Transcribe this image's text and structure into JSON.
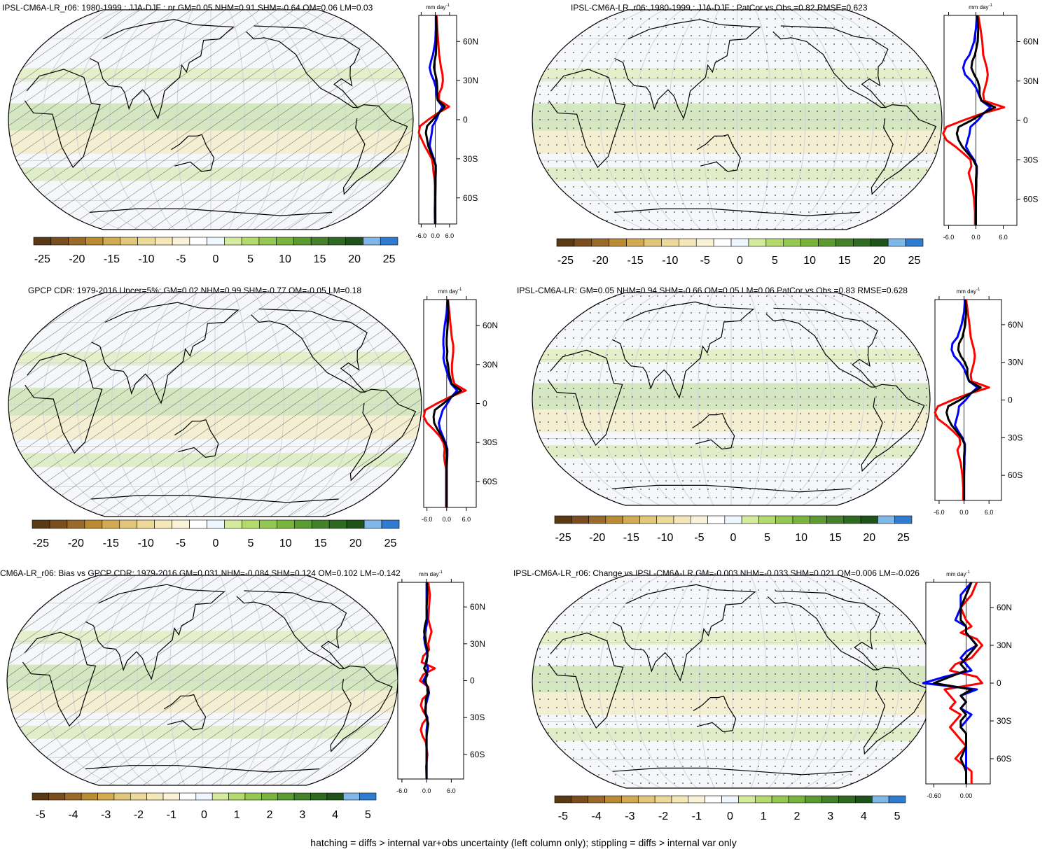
{
  "figure": {
    "footnote": "hatching = diffs > internal var+obs uncertainty (left column only); stippling = diffs > internal var only"
  },
  "colors": {
    "model_line": "#ff0000",
    "obs_line": "#0000ff",
    "ensemble_line": "#000000",
    "colorbar": [
      "#5a3a14",
      "#7a4e1e",
      "#9a6a2a",
      "#b98c34",
      "#d1aa52",
      "#e2c67a",
      "#ecd99a",
      "#f4e8b8",
      "#f9f2d6",
      "#ffffff",
      "#eef6ff",
      "#d4ea9c",
      "#b4da6e",
      "#94c852",
      "#78b43e",
      "#5c9a32",
      "#44812a",
      "#2f6a22",
      "#1f531a",
      "#7fb7e8",
      "#2e7bd0"
    ]
  },
  "chart_data": [
    {
      "type": "heatmap",
      "title": "IPSL-CM6A-LR_r06: 1980-1999 : JJA-DJF : pr GM=0.05 NHM=0.91 SHM=-0.64 OM=0.06 LM=0.03",
      "overlay": "hatching",
      "colorbar_ticks": [
        "-25",
        "-20",
        "-15",
        "-10",
        "-5",
        "0",
        "5",
        "10",
        "15",
        "20",
        "25"
      ],
      "zonal_mean": {
        "unit": "mm day",
        "unit_exp": "-1",
        "xticks": [
          "-6.0",
          "0.0",
          "6.0"
        ],
        "xlim": [
          -7,
          9
        ],
        "lat_ticks": [
          "60N",
          "30N",
          "0",
          "30S",
          "60S"
        ],
        "lat": [
          80,
          70,
          60,
          50,
          45,
          40,
          35,
          30,
          25,
          20,
          15,
          10,
          5,
          0,
          -5,
          -10,
          -15,
          -20,
          -25,
          -30,
          -35,
          -40,
          -45,
          -50,
          -60,
          -70,
          -80
        ],
        "series": [
          {
            "color": "red",
            "values": [
              0.5,
              0.8,
              1.2,
              1.6,
              2.0,
              2.4,
              3.0,
              3.2,
              2.8,
              1.6,
              1.5,
              5.8,
              1.0,
              -3.0,
              -6.5,
              -7.0,
              -5.8,
              -4.5,
              -3.0,
              -1.5,
              -1.0,
              -0.8,
              -0.4,
              -0.2,
              -0.2,
              -0.3,
              -0.2
            ]
          },
          {
            "color": "blue",
            "values": [
              0.2,
              0.2,
              0.0,
              -1.0,
              -1.8,
              -2.4,
              -1.8,
              -0.6,
              0.2,
              0.5,
              1.0,
              3.0,
              1.5,
              0.4,
              -1.2,
              -1.5,
              -2.0,
              -2.4,
              -1.6,
              -0.6,
              0.2,
              0.2,
              0.1,
              0.1,
              0.0,
              0.0,
              0.0
            ]
          },
          {
            "color": "black",
            "values": [
              0.3,
              0.5,
              0.4,
              0.2,
              -0.3,
              -0.6,
              0.0,
              0.6,
              0.8,
              0.8,
              1.0,
              4.0,
              1.4,
              -1.0,
              -3.5,
              -4.0,
              -3.5,
              -3.0,
              -2.0,
              -0.8,
              0.1,
              0.1,
              0.0,
              0.0,
              0.0,
              0.0,
              0.0
            ]
          }
        ]
      }
    },
    {
      "type": "heatmap",
      "title": "IPSL-CM6A-LR_r06: 1980-1999 : JJA-DJF : PatCor vs Obs =0.82 RMSE=0.623",
      "overlay": "stippling",
      "colorbar_ticks": [
        "-25",
        "-20",
        "-15",
        "-10",
        "-5",
        "0",
        "5",
        "10",
        "15",
        "20",
        "25"
      ],
      "zonal_mean": {
        "unit": "mm day",
        "unit_exp": "-1",
        "xticks": [
          "-6.0",
          "0.0",
          "6.0"
        ],
        "xlim": [
          -7,
          9
        ],
        "lat_ticks": [
          "60N",
          "30N",
          "0",
          "30S",
          "60S"
        ],
        "lat": [
          80,
          70,
          60,
          50,
          45,
          40,
          35,
          30,
          25,
          20,
          15,
          10,
          5,
          0,
          -5,
          -10,
          -15,
          -20,
          -25,
          -30,
          -35,
          -40,
          -45,
          -50,
          -60,
          -70,
          -80
        ],
        "series": [
          {
            "color": "red",
            "values": [
              0.5,
              1.0,
              1.4,
              1.6,
              2.0,
              2.4,
              2.6,
              2.4,
              2.0,
              1.6,
              1.8,
              6.2,
              1.2,
              -2.8,
              -6.5,
              -7.2,
              -6.5,
              -4.5,
              -2.8,
              -1.2,
              -1.0,
              -1.6,
              -1.2,
              -0.8,
              -0.4,
              -0.2,
              -0.2
            ]
          },
          {
            "color": "blue",
            "values": [
              0.2,
              0.0,
              -0.4,
              -1.4,
              -2.4,
              -2.8,
              -2.4,
              -1.0,
              0.0,
              0.6,
              1.2,
              3.2,
              1.6,
              0.4,
              -1.2,
              -1.4,
              -1.8,
              -2.2,
              -1.4,
              -0.4,
              0.2,
              0.2,
              0.1,
              0.1,
              0.0,
              0.0,
              0.0
            ]
          },
          {
            "color": "black",
            "values": [
              0.3,
              0.5,
              0.4,
              -0.2,
              -0.8,
              -1.0,
              -0.4,
              0.4,
              0.8,
              0.8,
              1.2,
              4.2,
              1.4,
              -1.0,
              -3.8,
              -4.2,
              -3.8,
              -3.0,
              -1.8,
              -0.6,
              0.1,
              0.1,
              0.0,
              0.0,
              0.0,
              0.0,
              0.0
            ]
          }
        ]
      }
    },
    {
      "type": "heatmap",
      "title": "GPCP CDR: 1979-2016 Uncer=5%: GM=0.02 NHM=0.99 SHM=-0.77 OM=-0.05 LM=0.18",
      "overlay": "hatching",
      "colorbar_ticks": [
        "-25",
        "-20",
        "-15",
        "-10",
        "-5",
        "0",
        "5",
        "10",
        "15",
        "20",
        "25"
      ],
      "zonal_mean": {
        "unit": "mm day",
        "unit_exp": "-1",
        "xticks": [
          "-6.0",
          "0.0",
          "6.0"
        ],
        "xlim": [
          -7,
          9
        ],
        "lat_ticks": [
          "60N",
          "30N",
          "0",
          "30S",
          "60S"
        ],
        "lat": [
          80,
          70,
          60,
          50,
          45,
          40,
          35,
          30,
          25,
          20,
          15,
          10,
          5,
          0,
          -5,
          -10,
          -15,
          -20,
          -25,
          -30,
          -35,
          -40,
          -45,
          -50,
          -60,
          -70,
          -80
        ],
        "series": [
          {
            "color": "red",
            "values": [
              0.4,
              0.8,
              1.2,
              1.6,
              2.0,
              2.0,
              1.8,
              1.6,
              1.6,
              1.8,
              2.4,
              5.8,
              1.0,
              -3.0,
              -6.5,
              -7.0,
              -6.0,
              -4.0,
              -2.2,
              -1.0,
              -0.6,
              -0.8,
              -0.6,
              -0.2,
              -0.2,
              -0.2,
              -0.2
            ]
          },
          {
            "color": "blue",
            "values": [
              0.2,
              0.0,
              -0.6,
              -1.0,
              -1.0,
              -0.8,
              -1.0,
              -0.6,
              0.0,
              0.6,
              1.4,
              3.2,
              1.4,
              0.2,
              -1.2,
              -1.8,
              -2.4,
              -2.0,
              -1.2,
              -0.4,
              0.2,
              0.2,
              0.1,
              0.0,
              0.0,
              0.0,
              0.0
            ]
          },
          {
            "color": "black",
            "values": [
              0.3,
              0.5,
              0.3,
              0.0,
              0.0,
              0.2,
              0.0,
              0.4,
              0.6,
              1.0,
              1.6,
              4.4,
              1.4,
              -1.0,
              -3.6,
              -4.0,
              -3.8,
              -2.8,
              -1.6,
              -0.6,
              0.0,
              0.0,
              0.0,
              0.0,
              0.0,
              0.0,
              0.0
            ]
          }
        ]
      }
    },
    {
      "type": "heatmap",
      "title": "IPSL-CM6A-LR: GM=0.05 NHM=0.94 SHM=-0.66 OM=0.05 LM=0.06 PatCor vs Obs =0.83 RMSE=0.628",
      "overlay": "stippling",
      "colorbar_ticks": [
        "-25",
        "-20",
        "-15",
        "-10",
        "-5",
        "0",
        "5",
        "10",
        "15",
        "20",
        "25"
      ],
      "zonal_mean": {
        "unit": "mm day",
        "unit_exp": "-1",
        "xticks": [
          "-6.0",
          "0.0",
          "6.0"
        ],
        "xlim": [
          -7,
          9
        ],
        "lat_ticks": [
          "60N",
          "30N",
          "0",
          "30S",
          "60S"
        ],
        "lat": [
          80,
          70,
          60,
          50,
          45,
          40,
          35,
          30,
          25,
          20,
          15,
          10,
          5,
          0,
          -5,
          -10,
          -15,
          -20,
          -25,
          -30,
          -35,
          -40,
          -45,
          -50,
          -60,
          -70,
          -80
        ],
        "series": [
          {
            "color": "red",
            "values": [
              0.5,
              0.9,
              1.3,
              1.6,
              2.0,
              2.4,
              2.6,
              2.4,
              2.0,
              1.6,
              1.8,
              6.0,
              1.2,
              -2.8,
              -6.3,
              -7.0,
              -6.3,
              -4.3,
              -2.6,
              -1.1,
              -0.9,
              -1.6,
              -1.2,
              -0.8,
              -0.4,
              -0.2,
              -0.2
            ]
          },
          {
            "color": "blue",
            "values": [
              0.2,
              0.0,
              -0.6,
              -1.6,
              -2.8,
              -3.0,
              -2.4,
              -1.0,
              0.0,
              0.6,
              1.2,
              3.2,
              1.6,
              0.4,
              -1.2,
              -1.4,
              -1.8,
              -2.2,
              -1.4,
              -0.4,
              0.2,
              0.2,
              0.1,
              0.1,
              0.0,
              0.0,
              0.0
            ]
          },
          {
            "color": "black",
            "values": [
              0.3,
              0.5,
              0.3,
              -0.4,
              -1.2,
              -1.4,
              -0.8,
              0.2,
              0.8,
              0.8,
              1.2,
              4.0,
              1.4,
              -1.0,
              -3.8,
              -4.2,
              -3.8,
              -3.0,
              -1.8,
              -0.6,
              0.1,
              0.1,
              0.0,
              0.0,
              0.0,
              0.0,
              0.0
            ]
          }
        ]
      }
    },
    {
      "type": "heatmap",
      "title": "CM6A-LR_r06: Bias vs GPCP CDR: 1979-2016 GM=0.031 NHM=-0.084 SHM=0.124 OM=0.102 LM=-0.142",
      "overlay": "hatching",
      "colorbar_ticks": [
        "-5",
        "-4",
        "-3",
        "-2",
        "-1",
        "0",
        "1",
        "2",
        "3",
        "4",
        "5"
      ],
      "zonal_mean": {
        "unit": "mm day",
        "unit_exp": "-1",
        "xticks": [
          "-6.0",
          "0.0",
          "6.0"
        ],
        "xlim": [
          -7,
          9
        ],
        "lat_ticks": [
          "60N",
          "30N",
          "0",
          "30S",
          "60S"
        ],
        "lat": [
          80,
          70,
          60,
          50,
          45,
          40,
          35,
          30,
          25,
          20,
          15,
          10,
          5,
          0,
          -5,
          -10,
          -15,
          -20,
          -25,
          -30,
          -35,
          -40,
          -45,
          -50,
          -60,
          -70,
          -80
        ],
        "series": [
          {
            "color": "red",
            "values": [
              0.4,
              0.8,
              0.6,
              0.4,
              0.8,
              1.2,
              0.8,
              0.4,
              0.6,
              -0.8,
              -1.2,
              2.0,
              -0.8,
              -1.6,
              0.4,
              0.6,
              -1.0,
              -1.4,
              -0.8,
              0.2,
              -1.0,
              -1.4,
              -1.0,
              -0.2,
              0.2,
              -0.1,
              0.0
            ]
          },
          {
            "color": "blue",
            "values": [
              0.0,
              0.0,
              0.0,
              0.2,
              0.0,
              -0.4,
              -0.6,
              -0.4,
              0.0,
              0.2,
              -0.2,
              0.4,
              0.0,
              -0.8,
              0.2,
              0.6,
              0.2,
              -0.2,
              -0.4,
              0.2,
              0.2,
              0.0,
              0.0,
              0.0,
              0.0,
              0.0,
              0.0
            ]
          },
          {
            "color": "black",
            "values": [
              0.1,
              0.2,
              0.0,
              0.0,
              -0.4,
              -0.6,
              -0.4,
              -0.2,
              0.2,
              0.2,
              0.0,
              -0.6,
              0.2,
              -0.4,
              0.2,
              0.4,
              -0.2,
              -0.2,
              -0.4,
              0.0,
              0.4,
              0.2,
              0.0,
              0.0,
              0.0,
              0.0,
              0.0
            ]
          }
        ]
      }
    },
    {
      "type": "heatmap",
      "title": "IPSL-CM6A-LR_r06: Change vs IPSL-CM6A-LR GM=-0.003 NHM=-0.033 SHM=0.021 OM=0.006 LM=-0.026",
      "overlay": "stippling",
      "colorbar_ticks": [
        "-5",
        "-4",
        "-3",
        "-2",
        "-1",
        "0",
        "1",
        "2",
        "3",
        "4",
        "5"
      ],
      "zonal_mean": {
        "unit": "mm day",
        "unit_exp": "-1",
        "xticks": [
          "-0.60",
          "0.00"
        ],
        "xlim": [
          -0.75,
          0.45
        ],
        "lat_ticks": [
          "60N",
          "30N",
          "0",
          "30S",
          "60S"
        ],
        "lat": [
          80,
          70,
          60,
          50,
          45,
          40,
          35,
          30,
          25,
          20,
          15,
          10,
          5,
          0,
          -5,
          -10,
          -15,
          -20,
          -25,
          -30,
          -35,
          -40,
          -45,
          -50,
          -60,
          -70,
          -80
        ],
        "series": [
          {
            "color": "red",
            "values": [
              0.2,
              0.1,
              -0.1,
              0.0,
              0.1,
              -0.1,
              0.2,
              0.3,
              0.2,
              0.1,
              -0.2,
              -0.3,
              0.2,
              0.3,
              -0.4,
              -0.3,
              -0.2,
              -0.3,
              -0.1,
              -0.2,
              -0.3,
              -0.2,
              -0.1,
              0.0,
              -0.2,
              0.1,
              0.1
            ]
          },
          {
            "color": "blue",
            "values": [
              0.1,
              -0.1,
              -0.1,
              -0.2,
              0.0,
              0.0,
              0.1,
              0.2,
              0.0,
              -0.1,
              0.0,
              0.1,
              -0.4,
              -0.8,
              0.2,
              -0.1,
              0.0,
              -0.1,
              0.1,
              0.0,
              -0.1,
              0.0,
              0.0,
              0.0,
              0.0,
              0.0,
              0.0
            ]
          },
          {
            "color": "black",
            "values": [
              0.1,
              0.0,
              -0.1,
              -0.1,
              0.0,
              0.0,
              0.1,
              0.2,
              0.1,
              0.0,
              -0.1,
              0.0,
              -0.3,
              -0.6,
              0.1,
              -0.1,
              0.0,
              -0.1,
              0.0,
              -0.1,
              -0.1,
              0.0,
              0.0,
              0.0,
              -0.1,
              0.0,
              0.0
            ]
          }
        ]
      }
    }
  ]
}
